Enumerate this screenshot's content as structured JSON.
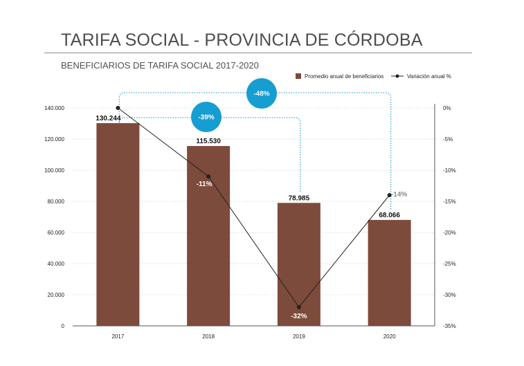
{
  "page": {
    "title": "TARIFA SOCIAL - PROVINCIA DE CÓRDOBA"
  },
  "chart_data": {
    "type": "bar",
    "title": "BENEFICIARIOS DE TARIFA SOCIAL 2017-2020",
    "categories": [
      "2017",
      "2018",
      "2019",
      "2020"
    ],
    "series": [
      {
        "name": "Promedio anual de beneficiarios",
        "type": "bar",
        "axis": "left",
        "values": [
          130244,
          115530,
          78985,
          68066
        ],
        "labels": [
          "130.244",
          "115.530",
          "78.985",
          "68.066"
        ]
      },
      {
        "name": "Variación anual %",
        "type": "line",
        "axis": "right",
        "values": [
          0,
          -11,
          -32,
          -14
        ],
        "labels": [
          "",
          "-11%",
          "-32%",
          "-14%"
        ]
      }
    ],
    "y_left": {
      "min": 0,
      "max": 140000,
      "step": 20000,
      "ticks": [
        "0",
        "20.000",
        "40.000",
        "60.000",
        "80.000",
        "100.000",
        "120.000",
        "140.000"
      ]
    },
    "y_right": {
      "min": -35,
      "max": 0,
      "step": 5,
      "ticks": [
        "0%",
        "-5%",
        "-10%",
        "-15%",
        "-20%",
        "-25%",
        "-30%",
        "-35%"
      ]
    },
    "annotations": [
      {
        "label": "-48%",
        "from": "2017",
        "to": "2020"
      },
      {
        "label": "-39%",
        "from": "2017",
        "to": "2019"
      }
    ],
    "grid": "horizontal-dotted",
    "legend_position": "top-right",
    "colors": {
      "bar": "#7d4b3c",
      "line": "#222222",
      "bubble": "#169dd1",
      "connector": "#3aa8d8",
      "muted": "#8a8a8a"
    }
  }
}
